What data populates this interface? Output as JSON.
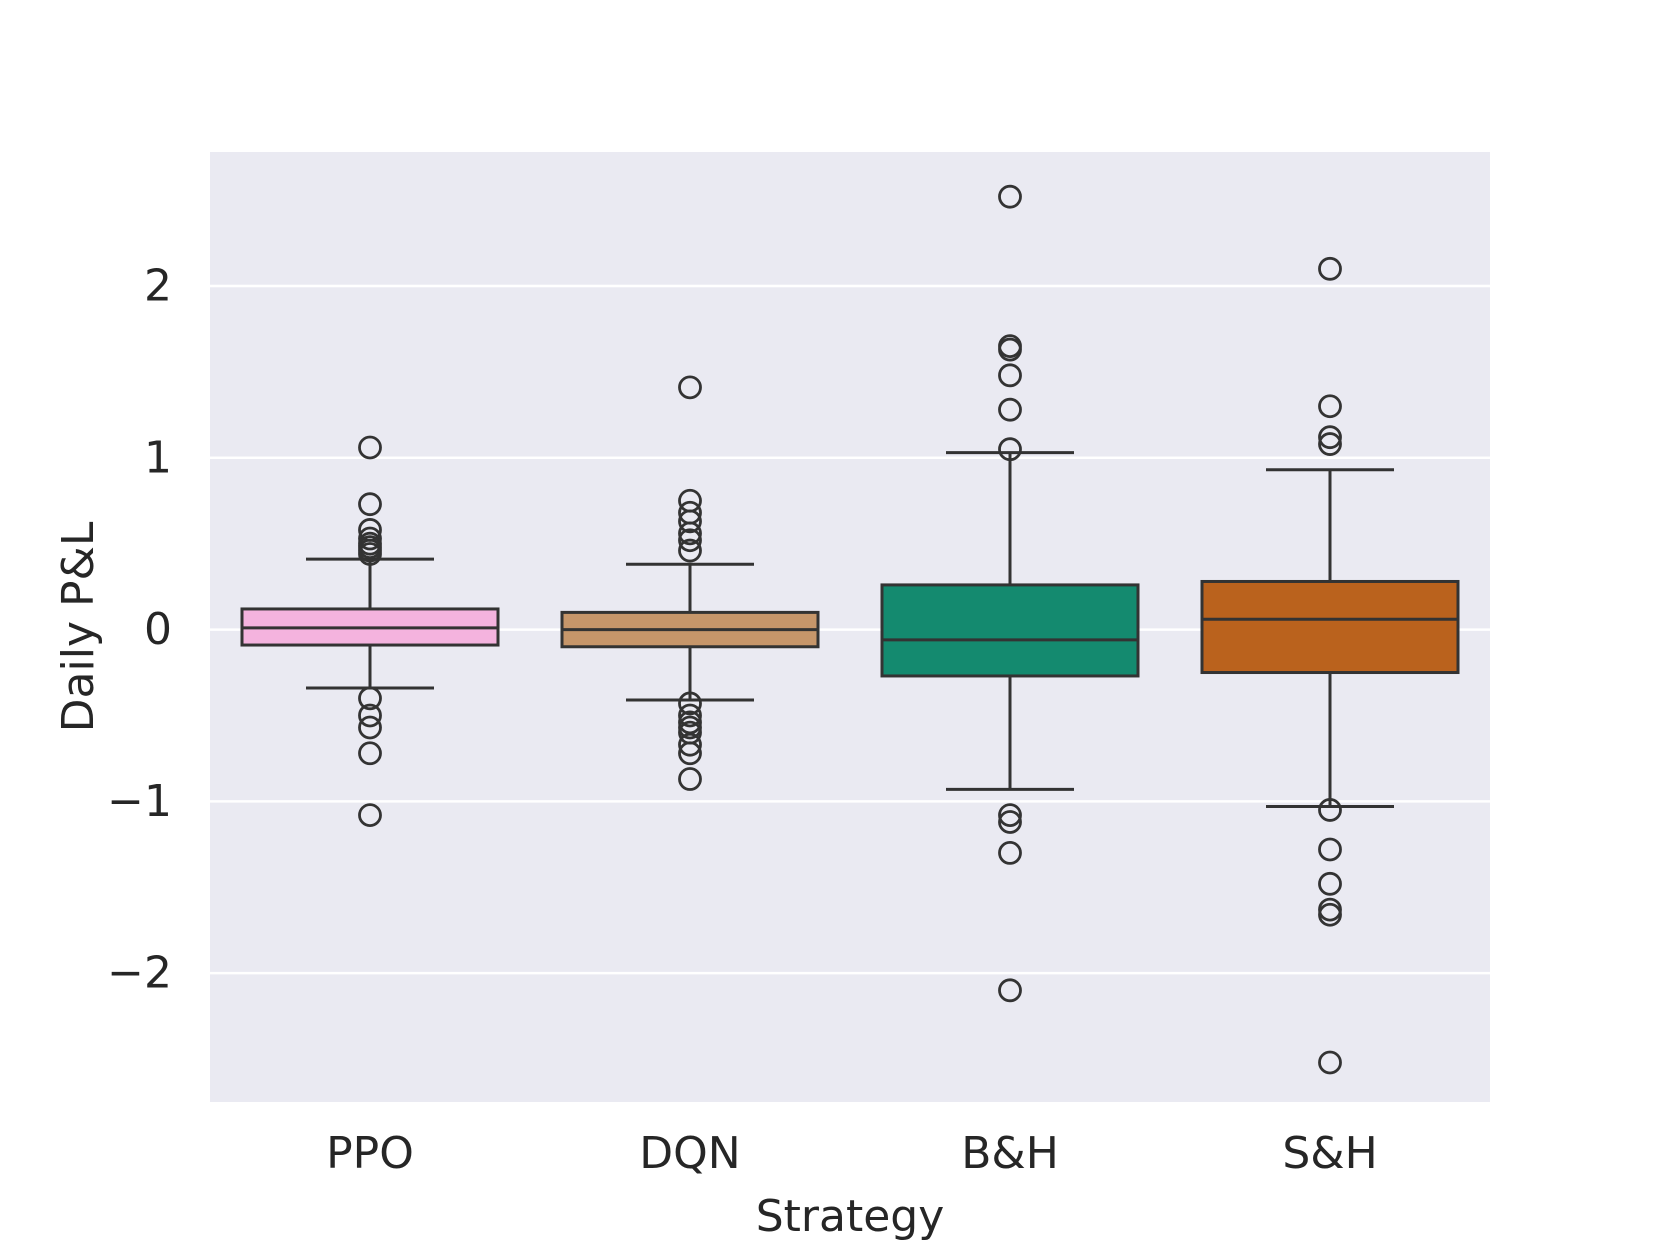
{
  "chart_data": {
    "type": "box",
    "title": "",
    "xlabel": "Strategy",
    "ylabel": "Daily P&L",
    "ylim": [
      -2.75,
      2.78
    ],
    "yticks": [
      2,
      1,
      0,
      -1,
      -2
    ],
    "ytick_labels": [
      "2",
      "1",
      "0",
      "−1",
      "−2"
    ],
    "grid": true,
    "background_color": "#EAEAF2",
    "categories": [
      "PPO",
      "DQN",
      "B&H",
      "S&H"
    ],
    "series": [
      {
        "name": "PPO",
        "color": "#F4B3DE",
        "whisker_low": -0.34,
        "q1": -0.09,
        "median": 0.01,
        "q3": 0.12,
        "whisker_high": 0.41,
        "outliers": [
          1.06,
          0.73,
          0.58,
          0.53,
          0.5,
          0.48,
          0.46,
          0.44,
          -0.4,
          -0.5,
          -0.57,
          -0.72,
          -1.08
        ]
      },
      {
        "name": "DQN",
        "color": "#C6966A",
        "whisker_low": -0.41,
        "q1": -0.1,
        "median": 0.0,
        "q3": 0.1,
        "whisker_high": 0.38,
        "outliers": [
          1.41,
          0.75,
          0.68,
          0.63,
          0.56,
          0.52,
          0.46,
          -0.43,
          -0.5,
          -0.54,
          -0.57,
          -0.6,
          -0.67,
          -0.72,
          -0.87
        ]
      },
      {
        "name": "B&H",
        "color": "#148A6F",
        "whisker_low": -0.93,
        "q1": -0.27,
        "median": -0.06,
        "q3": 0.26,
        "whisker_high": 1.03,
        "outliers": [
          2.52,
          1.65,
          1.63,
          1.48,
          1.28,
          1.05,
          -1.08,
          -1.12,
          -1.3,
          -2.1
        ]
      },
      {
        "name": "S&H",
        "color": "#BA621D",
        "whisker_low": -1.03,
        "q1": -0.25,
        "median": 0.06,
        "q3": 0.28,
        "whisker_high": 0.93,
        "outliers": [
          2.1,
          1.3,
          1.12,
          1.08,
          -1.05,
          -1.28,
          -1.48,
          -1.63,
          -1.66,
          -2.52
        ]
      }
    ]
  }
}
